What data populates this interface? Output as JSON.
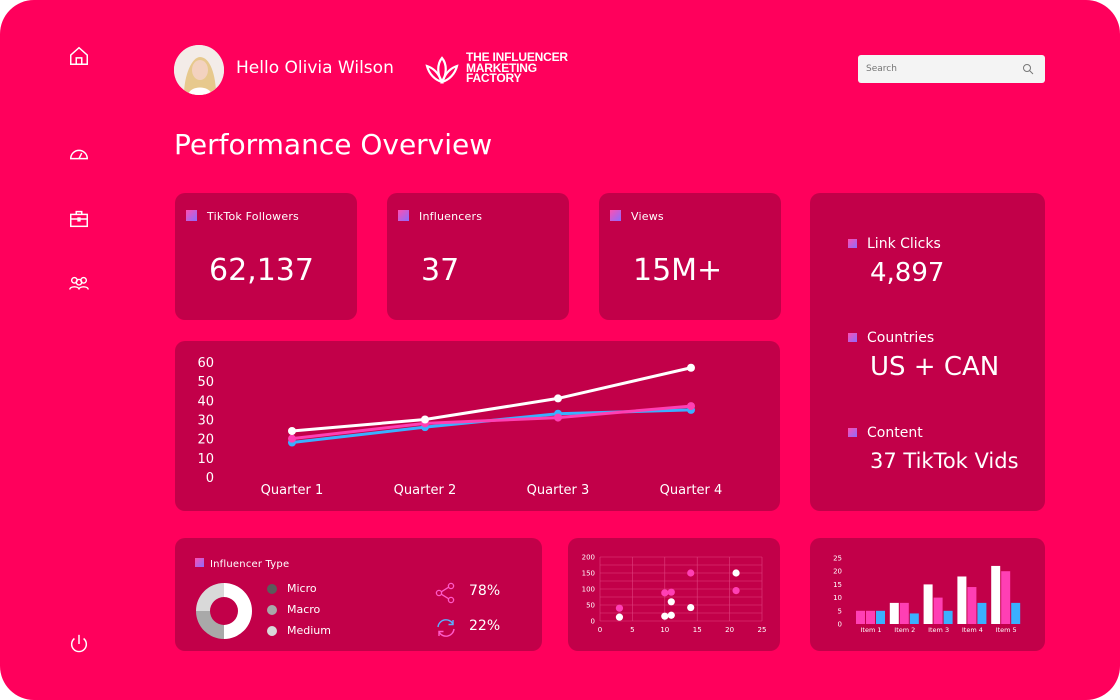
{
  "header": {
    "greeting": "Hello Olivia Wilson",
    "logo_line1": "THE INFLUENCER",
    "logo_line2": "MARKETING",
    "logo_line3": "FACTORY",
    "search_placeholder": "Search"
  },
  "page_title": "Performance Overview",
  "sidebar": {
    "icons": [
      "home-icon",
      "dashboard-gauge-icon",
      "briefcase-icon",
      "users-icon",
      "power-icon"
    ]
  },
  "stats": {
    "tiktok_label": "TikTok Followers",
    "tiktok_value": "62,137",
    "influencers_label": "Influencers",
    "influencers_value": "37",
    "views_label": "Views",
    "views_value": "15M+"
  },
  "right_panel": {
    "link_clicks_label": "Link Clicks",
    "link_clicks_value": "4,897",
    "countries_label": "Countries",
    "countries_value": "US + CAN",
    "content_label": "Content",
    "content_value": "37 TikTok Vids"
  },
  "influencer_type": {
    "title": "Influencer Type",
    "legend": [
      "Micro",
      "Macro",
      "Medium"
    ],
    "share_pct": "78%",
    "repost_pct": "22%"
  },
  "colors": {
    "background": "#ff005c",
    "card": "#c20049",
    "line_white": "#ffffff",
    "line_pink": "#ff3fb4",
    "line_blue": "#3ab0ff"
  },
  "chart_data": [
    {
      "type": "line",
      "categories": [
        "Quarter 1",
        "Quarter 2",
        "Quarter 3",
        "Quarter 4"
      ],
      "ylim": [
        0,
        60
      ],
      "yticks": [
        0,
        10,
        20,
        30,
        40,
        50,
        60
      ],
      "series": [
        {
          "values": [
            24,
            30,
            41,
            57
          ],
          "color": "#ffffff"
        },
        {
          "values": [
            20,
            28,
            31,
            37
          ],
          "color": "#ff3fb4"
        },
        {
          "values": [
            18,
            26,
            33,
            35
          ],
          "color": "#3ab0ff"
        }
      ]
    },
    {
      "type": "pie",
      "labels": [
        "Micro",
        "Macro",
        "Medium"
      ],
      "values": [
        50,
        25,
        25
      ],
      "colors": [
        "#ffffff",
        "#a9a9a9",
        "#d9d9d9"
      ]
    },
    {
      "type": "scatter",
      "xlim": [
        0,
        25
      ],
      "ylim": [
        0,
        200
      ],
      "xticks": [
        0,
        5,
        10,
        15,
        20,
        25
      ],
      "yticks": [
        0,
        25,
        50,
        75,
        100,
        125,
        150,
        175,
        200
      ],
      "series": [
        {
          "color": "#ffffff",
          "points": [
            [
              3,
              12
            ],
            [
              10,
              15
            ],
            [
              11,
              18
            ],
            [
              14,
              42
            ],
            [
              21,
              150
            ],
            [
              11,
              60
            ]
          ]
        },
        {
          "color": "#ff3fb4",
          "points": [
            [
              3,
              40
            ],
            [
              10,
              88
            ],
            [
              11,
              90
            ],
            [
              14,
              150
            ],
            [
              21,
              95
            ]
          ]
        }
      ]
    },
    {
      "type": "bar",
      "categories": [
        "Item 1",
        "Item 2",
        "Item 3",
        "Item 4",
        "Item 5"
      ],
      "ylim": [
        0,
        25
      ],
      "yticks": [
        0,
        5,
        10,
        15,
        20,
        25
      ],
      "series": [
        {
          "color": "#ff3fb4",
          "values": [
            5,
            8,
            15,
            18,
            22
          ]
        },
        {
          "color": "#ff3fb4",
          "values": [
            5,
            8,
            10,
            14,
            20
          ]
        },
        {
          "color": "#3ab0ff",
          "values": [
            5,
            4,
            5,
            8,
            8
          ]
        }
      ]
    }
  ]
}
